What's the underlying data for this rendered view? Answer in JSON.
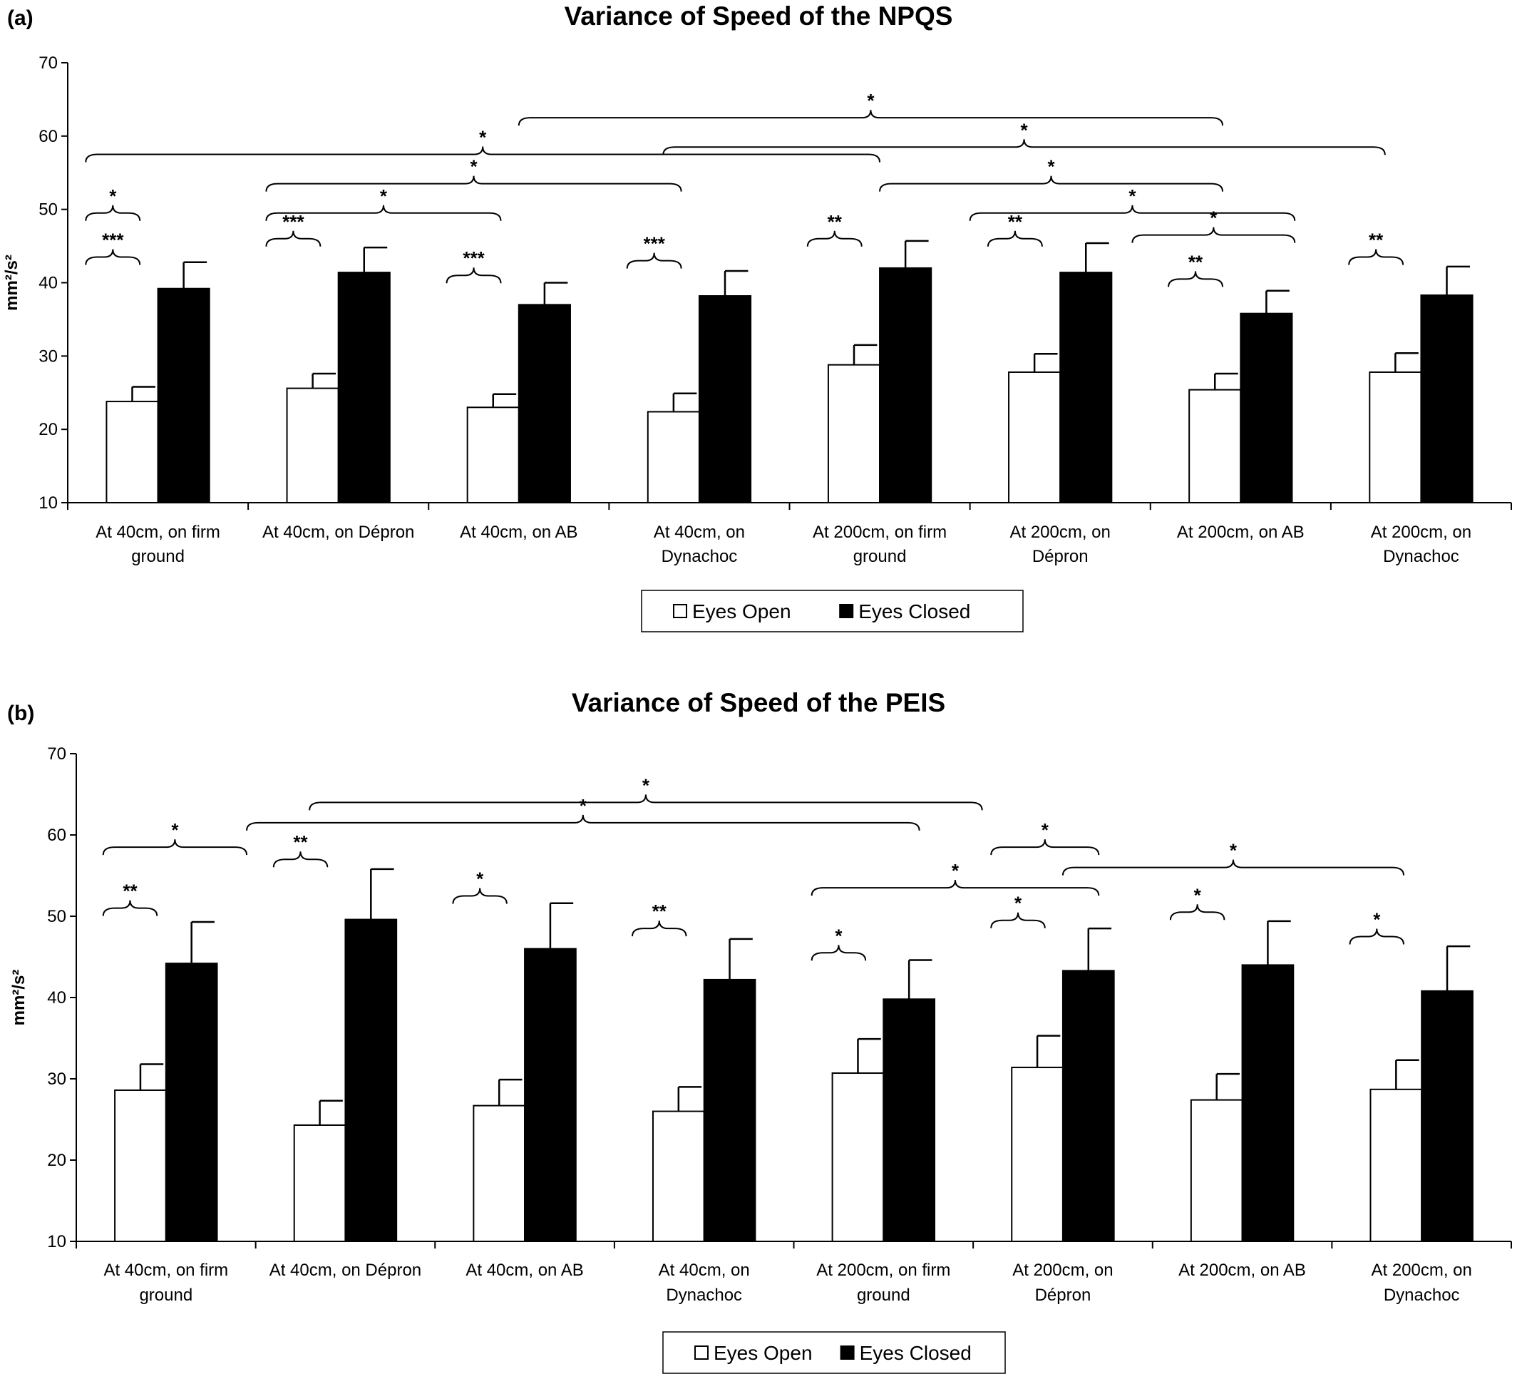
{
  "chart_data": [
    {
      "type": "bar",
      "panel_label": "(a)",
      "title": "Variance of Speed of the NPQS",
      "ylabel": "mm²/s²",
      "ylim": [
        10,
        70
      ],
      "yticks": [
        "10",
        "20",
        "30",
        "40",
        "50",
        "60",
        "70"
      ],
      "categories": [
        [
          "At 40cm, on firm",
          "ground"
        ],
        [
          "At 40cm, on Dépron"
        ],
        [
          "At 40cm, on AB"
        ],
        [
          "At 40cm, on",
          "Dynachoc"
        ],
        [
          "At 200cm, on firm",
          "ground"
        ],
        [
          "At 200cm, on",
          "Dépron"
        ],
        [
          "At 200cm, on AB"
        ],
        [
          "At 200cm, on",
          "Dynachoc"
        ]
      ],
      "series": [
        {
          "name": "Eyes Open",
          "color": "#ffffff",
          "values": [
            23.8,
            25.6,
            23.0,
            22.4,
            28.8,
            27.8,
            25.4,
            27.8
          ],
          "errors": [
            2.0,
            2.0,
            1.8,
            2.5,
            2.7,
            2.5,
            2.2,
            2.6
          ]
        },
        {
          "name": "Eyes Closed",
          "color": "#000000",
          "values": [
            39.2,
            41.4,
            37.0,
            38.2,
            42.0,
            41.4,
            35.8,
            38.3
          ],
          "errors": [
            3.6,
            3.4,
            3.0,
            3.4,
            3.7,
            4.0,
            3.1,
            3.9
          ]
        }
      ],
      "legend": [
        "Eyes Open",
        "Eyes Closed"
      ],
      "significance": [
        {
          "x1": 0.1,
          "x2": 0.4,
          "y": 49.5,
          "label": "*"
        },
        {
          "x1": 1.1,
          "x2": 2.4,
          "y": 49.5,
          "label": "*"
        },
        {
          "x1": 1.1,
          "x2": 3.4,
          "y": 53.5,
          "label": "*"
        },
        {
          "x1": 0.1,
          "x2": 4.5,
          "y": 57.5,
          "label": "*"
        },
        {
          "x1": 2.5,
          "x2": 6.4,
          "y": 62.5,
          "label": "*"
        },
        {
          "x1": 3.3,
          "x2": 7.3,
          "y": 58.5,
          "label": "*"
        },
        {
          "x1": 4.5,
          "x2": 6.4,
          "y": 53.5,
          "label": "*"
        },
        {
          "x1": 5.0,
          "x2": 6.8,
          "y": 49.5,
          "label": "*"
        },
        {
          "x1": 5.9,
          "x2": 6.8,
          "y": 46.5,
          "label": "*"
        },
        {
          "x1": 0.1,
          "x2": 0.4,
          "y": 43.5,
          "label": "***"
        },
        {
          "x1": 1.1,
          "x2": 1.4,
          "y": 46.0,
          "label": "***"
        },
        {
          "x1": 2.1,
          "x2": 2.4,
          "y": 41.0,
          "label": "***"
        },
        {
          "x1": 3.1,
          "x2": 3.4,
          "y": 43.0,
          "label": "***"
        },
        {
          "x1": 4.1,
          "x2": 4.4,
          "y": 46.0,
          "label": "**"
        },
        {
          "x1": 5.1,
          "x2": 5.4,
          "y": 46.0,
          "label": "**"
        },
        {
          "x1": 6.1,
          "x2": 6.4,
          "y": 40.5,
          "label": "**"
        },
        {
          "x1": 7.1,
          "x2": 7.4,
          "y": 43.5,
          "label": "**"
        }
      ]
    },
    {
      "type": "bar",
      "panel_label": "(b)",
      "title": "Variance of Speed of the PEIS",
      "ylabel": "mm²/s²",
      "ylim": [
        10,
        70
      ],
      "yticks": [
        "10",
        "20",
        "30",
        "40",
        "50",
        "60",
        "70"
      ],
      "categories": [
        [
          "At 40cm, on firm",
          "ground"
        ],
        [
          "At 40cm, on Dépron"
        ],
        [
          "At 40cm, on AB"
        ],
        [
          "At 40cm, on",
          "Dynachoc"
        ],
        [
          "At 200cm, on firm",
          "ground"
        ],
        [
          "At 200cm, on",
          "Dépron"
        ],
        [
          "At 200cm, on AB"
        ],
        [
          "At 200cm, on",
          "Dynachoc"
        ]
      ],
      "series": [
        {
          "name": "Eyes Open",
          "color": "#ffffff",
          "values": [
            28.6,
            24.3,
            26.7,
            26.0,
            30.7,
            31.4,
            27.4,
            28.7
          ],
          "errors": [
            3.2,
            3.0,
            3.2,
            3.0,
            4.2,
            3.9,
            3.2,
            3.6
          ]
        },
        {
          "name": "Eyes Closed",
          "color": "#000000",
          "values": [
            44.2,
            49.6,
            46.0,
            42.2,
            39.8,
            43.3,
            44.0,
            40.8
          ],
          "errors": [
            5.1,
            6.2,
            5.6,
            5.0,
            4.8,
            5.2,
            5.4,
            5.5
          ]
        }
      ],
      "legend": [
        "Eyes Open",
        "Eyes Closed"
      ],
      "significance": [
        {
          "x1": 0.15,
          "x2": 0.95,
          "y": 58.5,
          "label": "*"
        },
        {
          "x1": 0.95,
          "x2": 4.7,
          "y": 61.5,
          "label": "*"
        },
        {
          "x1": 1.3,
          "x2": 5.05,
          "y": 64.0,
          "label": "*"
        },
        {
          "x1": 5.1,
          "x2": 5.7,
          "y": 58.5,
          "label": "*"
        },
        {
          "x1": 5.5,
          "x2": 7.4,
          "y": 56.0,
          "label": "*"
        },
        {
          "x1": 4.1,
          "x2": 5.7,
          "y": 53.5,
          "label": "*"
        },
        {
          "x1": 0.15,
          "x2": 0.45,
          "y": 51.0,
          "label": "**"
        },
        {
          "x1": 1.1,
          "x2": 1.4,
          "y": 57.0,
          "label": "**"
        },
        {
          "x1": 2.1,
          "x2": 2.4,
          "y": 52.5,
          "label": "*"
        },
        {
          "x1": 3.1,
          "x2": 3.4,
          "y": 48.5,
          "label": "**"
        },
        {
          "x1": 4.1,
          "x2": 4.4,
          "y": 45.5,
          "label": "*"
        },
        {
          "x1": 5.1,
          "x2": 5.4,
          "y": 49.5,
          "label": "*"
        },
        {
          "x1": 6.1,
          "x2": 6.4,
          "y": 50.5,
          "label": "*"
        },
        {
          "x1": 7.1,
          "x2": 7.4,
          "y": 47.5,
          "label": "*"
        }
      ]
    }
  ]
}
